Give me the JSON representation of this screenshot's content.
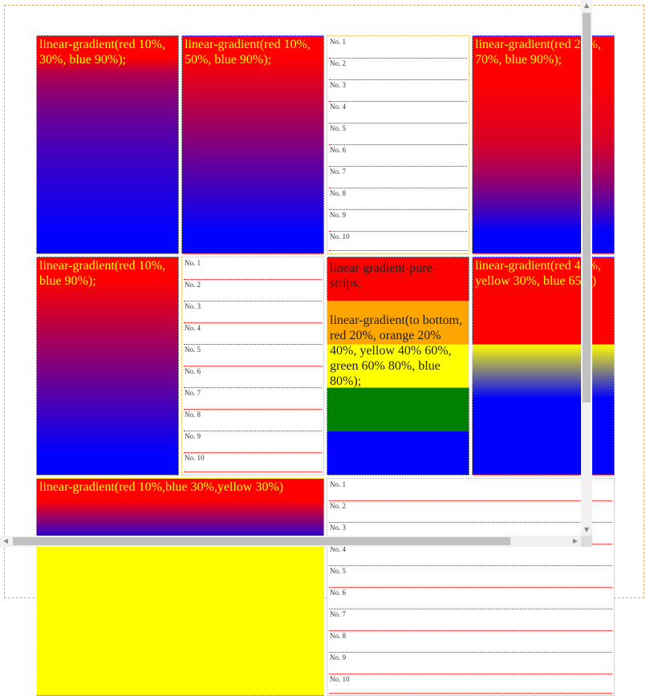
{
  "cells": {
    "c1": {
      "label": "linear-gradient(red 10%, 30%, blue 90%);"
    },
    "c2": {
      "label": "linear-gradient(red 10%, 50%, blue 90%);"
    },
    "c4": {
      "label": "linear-gradient(red 20%, 70%, blue 90%);"
    },
    "c5": {
      "label": "linear-gradient(red 10%, blue 90%);"
    },
    "c7": {
      "label_title": "linear-gradient-pure-strips;",
      "label_body": "linear-gradient(to bottom, red 20%, orange 20% 40%, yellow 40% 60%, green 60% 80%, blue 80%);"
    },
    "c8": {
      "label": "linear-gradient(red 40%, yellow 30%, blue 65%)"
    },
    "c9": {
      "label": "linear-gradient(red 10%,blue 30%,yellow 30%)"
    }
  },
  "list_items": [
    "No. 1",
    "No. 2",
    "No. 3",
    "No. 4",
    "No. 5",
    "No. 6",
    "No. 7",
    "No. 8",
    "No. 9",
    "No. 10"
  ],
  "colors": {
    "red": "#ff0000",
    "blue": "#0000ff",
    "yellow": "#ffff00",
    "orange": "#ffa500",
    "green": "#008000",
    "label": "#ffff00"
  },
  "scrollbars": {
    "up_arrow": "▲",
    "down_arrow": "▼",
    "left_arrow": "◀",
    "right_arrow": "▶"
  }
}
